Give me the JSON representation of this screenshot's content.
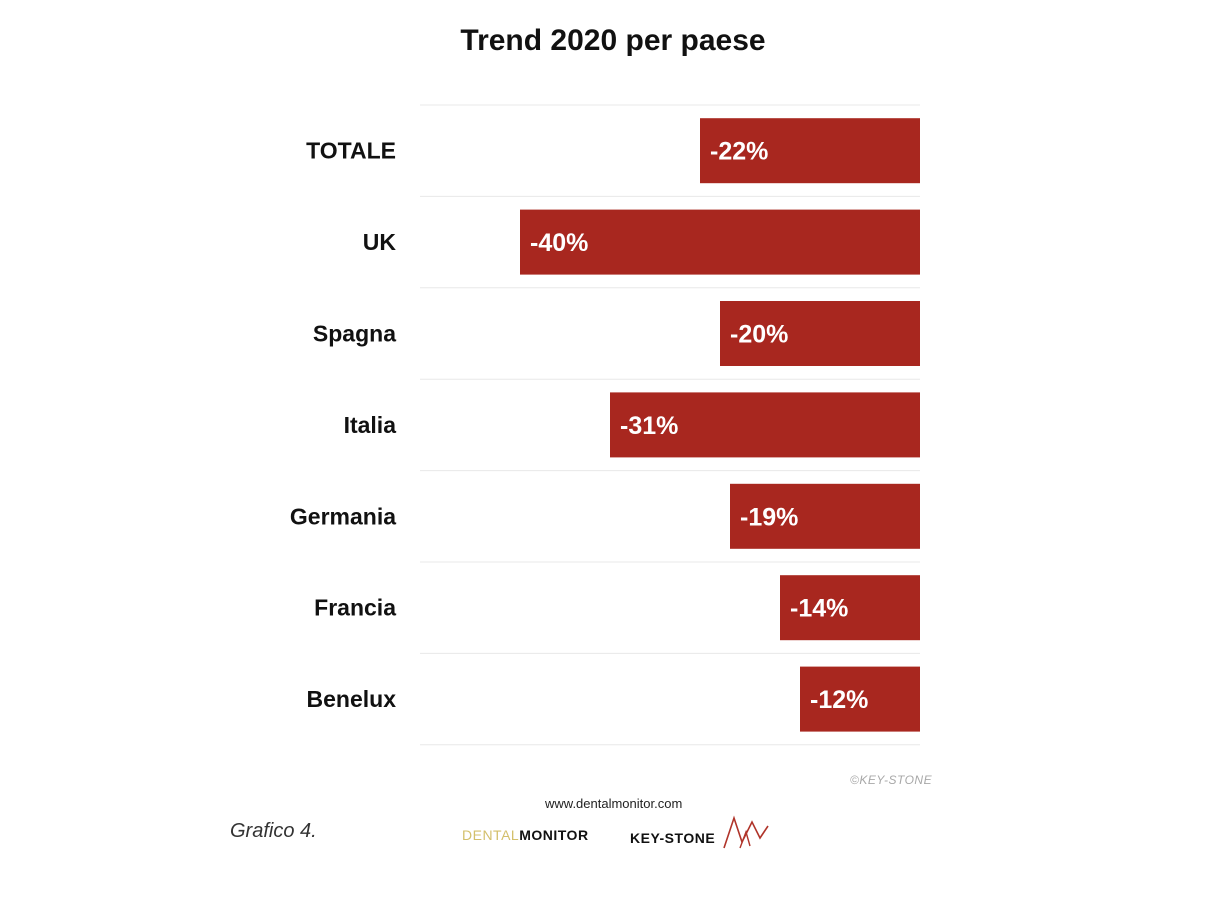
{
  "chart_data": {
    "type": "bar",
    "orientation": "horizontal",
    "title": "Trend 2020 per paese",
    "categories": [
      "TOTALE",
      "UK",
      "Spagna",
      "Italia",
      "Germania",
      "Francia",
      "Benelux"
    ],
    "values": [
      -22,
      -40,
      -20,
      -31,
      -19,
      -14,
      -12
    ],
    "value_labels": [
      "-22%",
      "-40%",
      "-20%",
      "-31%",
      "-19%",
      "-14%",
      "-12%"
    ],
    "xlabel": "",
    "ylabel": "",
    "xlim": [
      -50,
      0
    ],
    "grid": "horizontal separators",
    "legend": "none",
    "bar_color": "#a8271f"
  },
  "footer": {
    "copyright": "©KEY-STONE",
    "website": "www.dentalmonitor.com",
    "caption": "Grafico 4.",
    "logo_dental_a": "DENTAL",
    "logo_dental_b": "MONITOR",
    "logo_keystone": "KEY-STONE"
  }
}
